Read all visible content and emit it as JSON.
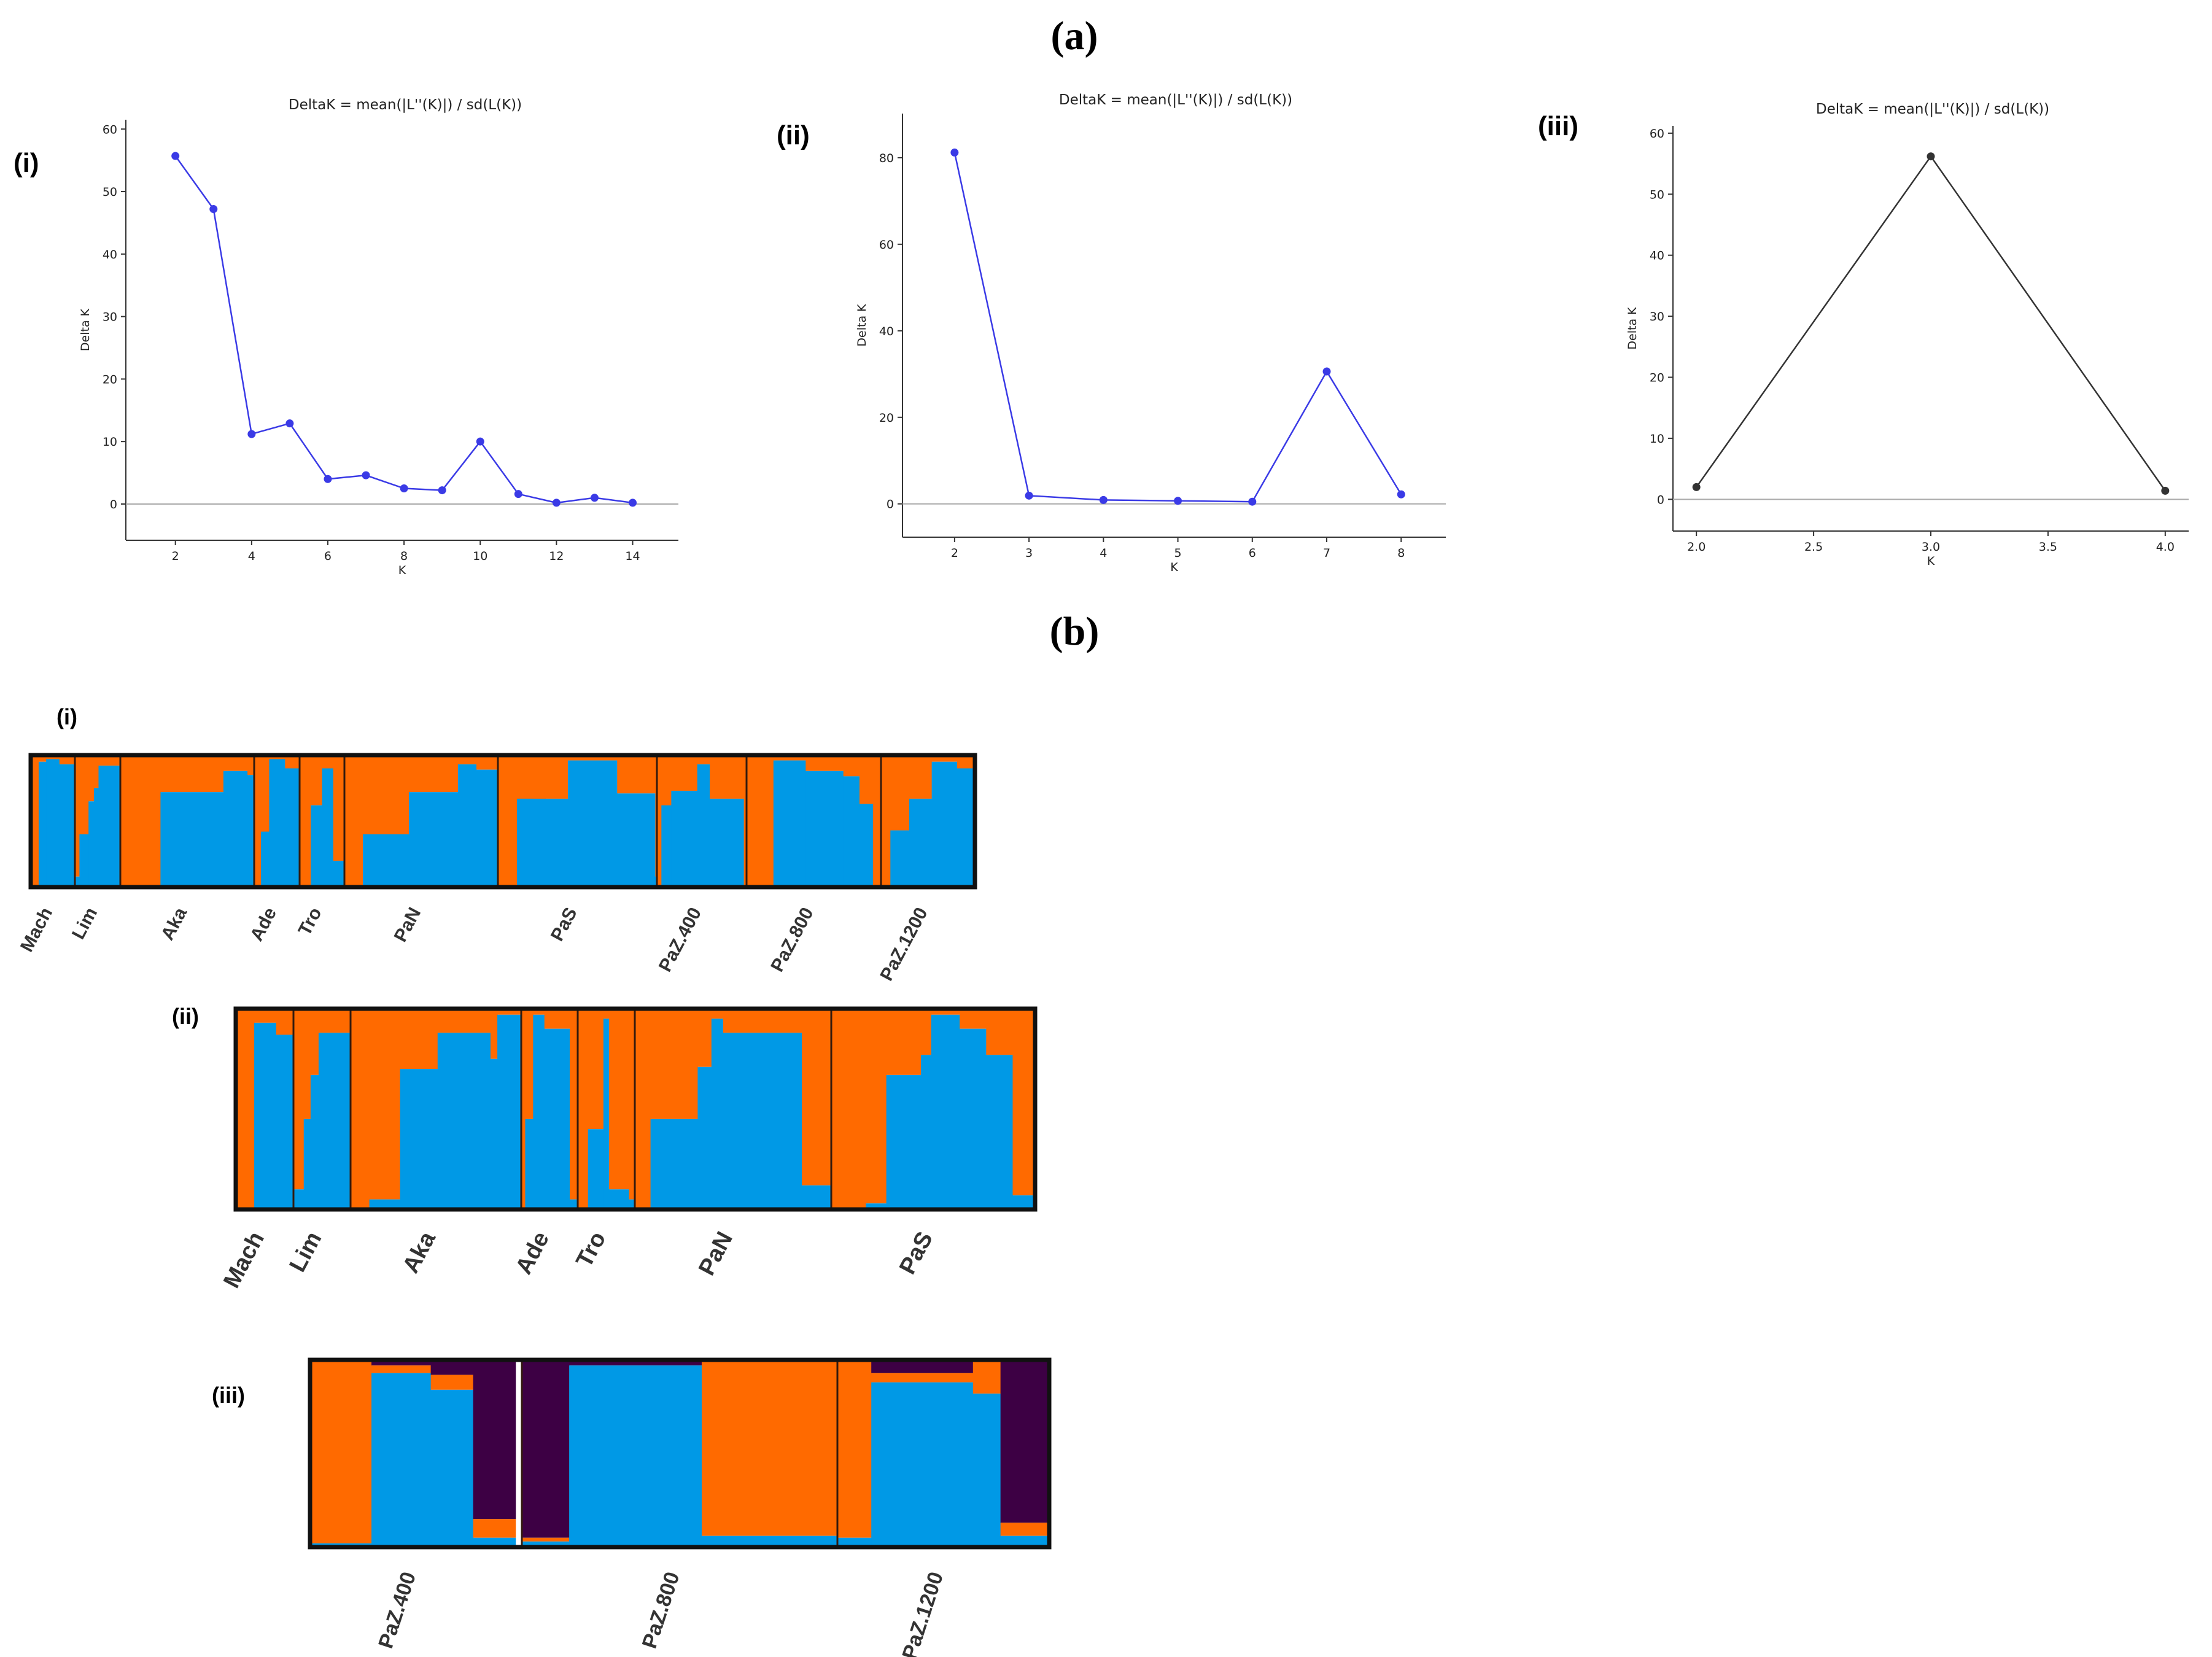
{
  "figure": {
    "panel_a_label": "(a)",
    "panel_b_label": "(b)",
    "colors": {
      "orange": "#ff6a00",
      "blue": "#0099e6",
      "purple": "#3d0044",
      "line_blue": "#3a3ae6",
      "line_black": "#333333"
    }
  },
  "chart_data": [
    {
      "id": "deltaK_i",
      "type": "line",
      "label": "(i)",
      "title": "DeltaK = mean(|L''(K)|) / sd(L(K))",
      "xlabel": "K",
      "ylabel": "Delta K",
      "x": [
        2,
        3,
        4,
        5,
        6,
        7,
        8,
        9,
        10,
        11,
        12,
        13,
        14
      ],
      "y": [
        55.7,
        47.2,
        11.2,
        12.9,
        4.0,
        4.6,
        2.5,
        2.2,
        10.0,
        1.6,
        0.2,
        1.0,
        0.2
      ],
      "xlim": [
        0.7,
        15.2
      ],
      "ylim": [
        -5.8,
        61.5
      ],
      "xticks": [
        2,
        4,
        6,
        8,
        10,
        12,
        14
      ],
      "yticks": [
        0,
        10,
        20,
        30,
        40,
        50,
        60
      ],
      "xtick_labels": [
        "2",
        "4",
        "6",
        "8",
        "10",
        "12",
        "14"
      ],
      "ytick_labels": [
        "0",
        "10",
        "20",
        "30",
        "40",
        "50",
        "60"
      ],
      "color": "#3a3ae6"
    },
    {
      "id": "deltaK_ii",
      "type": "line",
      "label": "(ii)",
      "title": "DeltaK = mean(|L''(K)|) / sd(L(K))",
      "xlabel": "K",
      "ylabel": "Delta K",
      "x": [
        2,
        3,
        4,
        5,
        6,
        7,
        8
      ],
      "y": [
        81.2,
        1.9,
        0.9,
        0.7,
        0.5,
        30.6,
        2.2
      ],
      "xlim": [
        1.3,
        8.6
      ],
      "ylim": [
        -7.7,
        90.2
      ],
      "xticks": [
        2,
        3,
        4,
        5,
        6,
        7,
        8
      ],
      "yticks": [
        0,
        20,
        40,
        60,
        80
      ],
      "xtick_labels": [
        "2",
        "3",
        "4",
        "5",
        "6",
        "7",
        "8"
      ],
      "ytick_labels": [
        "0",
        "20",
        "40",
        "60",
        "80"
      ],
      "color": "#3a3ae6"
    },
    {
      "id": "deltaK_iii",
      "type": "line",
      "label": "(iii)",
      "title": "DeltaK = mean(|L''(K)|) / sd(L(K))",
      "xlabel": "K",
      "ylabel": "Delta K",
      "x": [
        2.0,
        3.0,
        4.0
      ],
      "y": [
        2.0,
        56.2,
        1.4
      ],
      "xlim": [
        1.9,
        4.1
      ],
      "ylim": [
        -5.2,
        61.2
      ],
      "xticks": [
        2.0,
        2.5,
        3.0,
        3.5,
        4.0
      ],
      "yticks": [
        0,
        10,
        20,
        30,
        40,
        50,
        60
      ],
      "xtick_labels": [
        "2.0",
        "2.5",
        "3.0",
        "3.5",
        "4.0"
      ],
      "ytick_labels": [
        "0",
        "10",
        "20",
        "30",
        "40",
        "50",
        "60"
      ],
      "color": "#333333"
    },
    {
      "id": "structure_i",
      "type": "bar",
      "stacked": true,
      "label": "(i)",
      "description": "STRUCTURE admixture proportions, K=2 (proportion of blue cluster per population segment)",
      "populations": [
        "Mach",
        "Lim",
        "Aka",
        "Ade",
        "Tro",
        "PaN",
        "PaS",
        "PaZ.400",
        "PaZ.800",
        "PaZ.1200"
      ],
      "segments": [
        [
          [
            0.18,
            0
          ],
          [
            0.17,
            0.95
          ],
          [
            0.3,
            0.97
          ],
          [
            0.35,
            0.93
          ]
        ],
        [
          [
            0.1,
            0.08
          ],
          [
            0.2,
            0.4
          ],
          [
            0.12,
            0.65
          ],
          [
            0.1,
            0.75
          ],
          [
            0.48,
            0.92
          ]
        ],
        [
          [
            0.3,
            0
          ],
          [
            0.47,
            0.72
          ],
          [
            0.18,
            0.88
          ],
          [
            0.05,
            0.85
          ],
          [
            0.31,
            1.0
          ],
          [
            0.01,
            0.95
          ]
        ],
        [
          [
            0.15,
            0
          ],
          [
            0.18,
            0.42
          ],
          [
            0.35,
            0.97
          ],
          [
            0.32,
            0.9
          ]
        ],
        [
          [
            0.25,
            0
          ],
          [
            0.25,
            0.62
          ],
          [
            0.25,
            0.9
          ],
          [
            0.25,
            0.2
          ]
        ],
        [
          [
            0.12,
            0
          ],
          [
            0.3,
            0.4
          ],
          [
            0.32,
            0.72
          ],
          [
            0.12,
            0.93
          ],
          [
            0.37,
            0.89
          ],
          [
            0.08,
            0.01
          ]
        ],
        [
          [
            0.12,
            0
          ],
          [
            0.32,
            0.67
          ],
          [
            0.31,
            0.96
          ],
          [
            0.24,
            0.71
          ],
          [
            0.1,
            0.08
          ]
        ],
        [
          [
            0.05,
            0
          ],
          [
            0.11,
            0.62
          ],
          [
            0.29,
            0.73
          ],
          [
            0.14,
            0.93
          ],
          [
            0.38,
            0.67
          ],
          [
            0.03,
            0
          ]
        ],
        [
          [
            0.2,
            0
          ],
          [
            0.24,
            0.96
          ],
          [
            0.28,
            0.88
          ],
          [
            0.12,
            0.84
          ],
          [
            0.1,
            0.63
          ],
          [
            0.06,
            0
          ]
        ],
        [
          [
            0.1,
            0
          ],
          [
            0.2,
            0.43
          ],
          [
            0.24,
            0.67
          ],
          [
            0.27,
            0.95
          ],
          [
            0.19,
            0.9
          ]
        ]
      ],
      "widths": [
        72,
        74,
        218,
        74,
        73,
        250,
        259,
        146,
        219,
        153
      ]
    },
    {
      "id": "structure_ii",
      "type": "bar",
      "stacked": true,
      "label": "(ii)",
      "description": "STRUCTURE admixture proportions, K=2 (proportion of blue cluster per population segment)",
      "populations": [
        "Mach",
        "Lim",
        "Aka",
        "Ade",
        "Tro",
        "PaN",
        "PaS"
      ],
      "segments": [
        [
          [
            0.32,
            0
          ],
          [
            0.38,
            0.93
          ],
          [
            0.3,
            0.87
          ]
        ],
        [
          [
            0.18,
            0.1
          ],
          [
            0.12,
            0.45
          ],
          [
            0.14,
            0.67
          ],
          [
            0.56,
            0.88
          ]
        ],
        [
          [
            0.11,
            0
          ],
          [
            0.18,
            0.05
          ],
          [
            0.22,
            0.7
          ],
          [
            0.31,
            0.88
          ],
          [
            0.04,
            0.75
          ],
          [
            0.14,
            0.97
          ],
          [
            0.0,
            0.0
          ]
        ],
        [
          [
            0.07,
            0
          ],
          [
            0.14,
            0.45
          ],
          [
            0.2,
            0.97
          ],
          [
            0.45,
            0.9
          ],
          [
            0.14,
            0.05
          ]
        ],
        [
          [
            0.18,
            0.01
          ],
          [
            0.27,
            0.4
          ],
          [
            0.1,
            0.95
          ],
          [
            0.35,
            0.1
          ],
          [
            0.1,
            0.05
          ]
        ],
        [
          [
            0.08,
            0
          ],
          [
            0.1,
            0.45
          ],
          [
            0.14,
            0.45
          ],
          [
            0.07,
            0.71
          ],
          [
            0.06,
            0.95
          ],
          [
            0.4,
            0.88
          ],
          [
            0.25,
            0.12
          ],
          [
            0.0,
            0.0
          ]
        ],
        [
          [
            0.17,
            0
          ],
          [
            0.1,
            0.03
          ],
          [
            0.17,
            0.67
          ],
          [
            0.05,
            0.77
          ],
          [
            0.14,
            0.97
          ],
          [
            0.13,
            0.9
          ],
          [
            0.13,
            0.77
          ],
          [
            0.11,
            0.07
          ]
        ]
      ],
      "widths": [
        94,
        93,
        278,
        92,
        93,
        320,
        332
      ]
    },
    {
      "id": "structure_iii",
      "type": "bar",
      "stacked": true,
      "label": "(iii)",
      "description": "STRUCTURE admixture proportions, K=3 (orange / blue / purple clusters)",
      "populations": [
        "PaZ.400",
        "PaZ.800",
        "PaZ.1200"
      ],
      "segments": [
        [
          [
            0.29,
            0.02,
            0.0
          ],
          [
            0.28,
            0.93,
            0.03
          ],
          [
            0.2,
            0.84,
            0.08
          ],
          [
            0.2,
            0.05,
            0.85
          ]
        ],
        [
          [
            0.15,
            0.03,
            0.95
          ],
          [
            0.42,
            0.97,
            0.03
          ],
          [
            0.43,
            0.06,
            0.0
          ]
        ],
        [
          [
            0.16,
            0.05,
            0.0
          ],
          [
            0.48,
            0.88,
            0.07
          ],
          [
            0.13,
            0.82,
            0.0
          ],
          [
            0.23,
            0.06,
            0.87
          ]
        ]
      ],
      "widths": [
        345,
        514,
        345
      ]
    }
  ]
}
